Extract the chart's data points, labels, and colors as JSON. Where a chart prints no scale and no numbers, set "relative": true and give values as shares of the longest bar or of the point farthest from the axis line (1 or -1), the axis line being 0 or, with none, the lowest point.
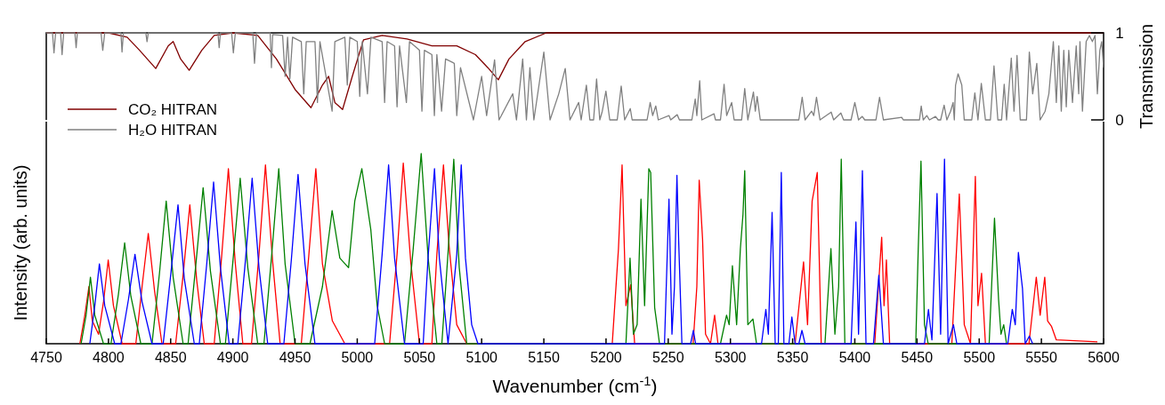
{
  "chart_data": [
    {
      "type": "line",
      "xlim": [
        4750,
        5600
      ],
      "ylim": [
        0,
        1
      ],
      "yticks": [
        0,
        1
      ],
      "ylabel": "Transmission",
      "tick_labels": "y",
      "legend": "bottom left",
      "series": [
        {
          "name": "CO₂ HITRAN",
          "color": "#800000",
          "x": [
            4750,
            4800,
            4815,
            4825,
            4838,
            4848,
            4852,
            4858,
            4864.9,
            4875,
            4885,
            4900,
            4920,
            4935,
            4950,
            4962.8,
            4972,
            4977,
            4982,
            4988.2,
            4996,
            5005,
            5020,
            5040,
            5060,
            5080,
            5095,
            5105,
            5113.4,
            5122,
            5135,
            5152,
            5600
          ],
          "values": [
            1,
            1,
            0.95,
            0.8,
            0.59,
            0.85,
            0.9,
            0.7,
            0.57,
            0.8,
            0.97,
            1,
            0.97,
            0.7,
            0.35,
            0.14,
            0.4,
            0.5,
            0.2,
            0.12,
            0.5,
            0.92,
            0.97,
            0.93,
            0.85,
            0.85,
            0.75,
            0.6,
            0.46,
            0.7,
            0.9,
            1,
            1
          ]
        },
        {
          "name": "H₂O HITRAN",
          "color": "#808080",
          "x": [
            4750,
            4755,
            4756.2,
            4757.5,
            4761.5,
            4762.7,
            4764,
            4773,
            4774,
            4775,
            4794,
            4795.4,
            4797,
            4810,
            4810.9,
            4812,
            4830,
            4831,
            4832,
            4888,
            4889,
            4890,
            4899,
            4900.4,
            4902,
            4916,
            4917.4,
            4919,
            4930,
            4931,
            4932,
            4940,
            4942,
            4944,
            4945.8,
            4948,
            4955,
            4957,
            4959,
            4966,
            4968,
            4970,
            4979.8,
            4982,
            4990,
            4992,
            4994,
            5000,
            5002,
            5004,
            5008.2,
            5011,
            5020,
            5022,
            5024,
            5030,
            5032,
            5034,
            5039.5,
            5042,
            5050,
            5052,
            5054,
            5060,
            5062,
            5064,
            5067.8,
            5071,
            5078,
            5080,
            5083,
            5093.4,
            5100,
            5104,
            5110.4,
            5114,
            5125,
            5128,
            5133,
            5136,
            5138.8,
            5142,
            5150,
            5155,
            5162,
            5167.2,
            5171,
            5178,
            5180,
            5184.2,
            5187,
            5190,
            5192.4,
            5195,
            5197,
            5199.9,
            5203,
            5209,
            5212.2,
            5215,
            5219.5,
            5221,
            5233,
            5235.5,
            5237.5,
            5240,
            5242,
            5250.6,
            5252,
            5257.2,
            5259,
            5269,
            5271.7,
            5273,
            5275.3,
            5277,
            5286.8,
            5288,
            5292,
            5294.9,
            5297,
            5301,
            5303,
            5309,
            5311.5,
            5314,
            5318.5,
            5320,
            5321.5,
            5324,
            5355,
            5357.7,
            5360,
            5365.3,
            5367,
            5369.2,
            5372,
            5381,
            5383,
            5388.8,
            5391,
            5397,
            5400,
            5403,
            5406,
            5408,
            5417,
            5419.9,
            5423,
            5437.7,
            5439,
            5452,
            5453.4,
            5455,
            5457.9,
            5460,
            5464.9,
            5467,
            5469,
            5471.8,
            5474,
            5477,
            5479,
            5480,
            5481,
            5483,
            5486,
            5488,
            5494,
            5496.5,
            5499,
            5501.7,
            5505,
            5509,
            5511.9,
            5515,
            5518,
            5520.1,
            5522,
            5525.8,
            5528,
            5530.4,
            5533,
            5538,
            5540.3,
            5543,
            5546.3,
            5549,
            5553,
            5556,
            5559.6,
            5562,
            5564,
            5566,
            5568,
            5570,
            5572,
            5575,
            5578,
            5580,
            5581,
            5583,
            5586,
            5588.6,
            5591,
            5593.1,
            5595,
            5597,
            5598.5,
            5600
          ],
          "values": [
            1,
            1,
            0.77,
            1,
            1,
            0.75,
            1,
            1,
            0.83,
            1,
            1,
            0.8,
            1,
            1,
            0.78,
            1,
            1,
            0.9,
            1,
            1,
            0.83,
            1,
            1,
            0.77,
            1,
            1,
            0.65,
            1,
            1,
            0.6,
            0.98,
            0.97,
            0.5,
            0.95,
            0.47,
            0.95,
            0.9,
            0.3,
            0.9,
            0.9,
            0.2,
            0.9,
            0.1,
            0.9,
            0.95,
            0.4,
            0.95,
            0.9,
            0.27,
            0.9,
            0.3,
            0.95,
            0.9,
            0.2,
            0.9,
            0.85,
            0.15,
            0.85,
            0.2,
            0.9,
            0.8,
            0.1,
            0.8,
            0.75,
            0.05,
            0.75,
            0.1,
            0.7,
            0.65,
            0.05,
            0.6,
            0,
            0.5,
            0.05,
            0.69,
            0,
            0.3,
            0,
            0.7,
            0,
            0.6,
            0,
            0.78,
            0,
            0.3,
            0.59,
            0,
            0.2,
            0,
            0.4,
            0,
            0,
            0.47,
            0,
            0.1,
            0.33,
            0,
            0,
            0.39,
            0,
            0.13,
            0,
            0,
            0.2,
            0.05,
            0.16,
            0,
            0.05,
            0,
            0.06,
            0,
            0,
            0.24,
            0.05,
            0.45,
            0,
            0.07,
            0,
            0,
            0.41,
            0.05,
            0.2,
            0,
            0,
            0.36,
            0,
            0.32,
            0.1,
            0.27,
            0,
            0,
            0.26,
            0,
            0.1,
            0.05,
            0.26,
            0,
            0.09,
            0,
            0.08,
            0,
            0,
            0.2,
            0,
            0.04,
            0,
            0,
            0.26,
            0,
            0.03,
            0,
            0,
            0.16,
            0,
            0.05,
            0,
            0.04,
            0,
            0,
            0.17,
            0,
            0.1,
            0.2,
            0,
            0.4,
            0.53,
            0.4,
            0,
            0,
            0.31,
            0,
            0.42,
            0,
            0,
            0.62,
            0,
            0,
            0.41,
            0,
            0.71,
            0.1,
            0.74,
            0,
            0,
            0.78,
            0.3,
            0.65,
            0,
            0.1,
            0.3,
            0.9,
            0.2,
            0.85,
            0.1,
            0.8,
            0.15,
            0.8,
            0.2,
            0.85,
            0.3,
            0.9,
            0.1,
            0.9,
            0.97,
            0.9,
            0.97,
            0.3,
            0.8,
            0.9,
            0.6
          ]
        }
      ]
    },
    {
      "type": "line",
      "relative": true,
      "xlim": [
        4750,
        5600
      ],
      "xticks": [
        4750,
        4800,
        4850,
        4900,
        4950,
        5000,
        5050,
        5100,
        5150,
        5200,
        5250,
        5300,
        5350,
        5400,
        5450,
        5500,
        5550,
        5600
      ],
      "xlabel": "Wavenumber (cm$^{-1}$)",
      "ylabel": "Intensity (arb. units)",
      "tick_labels": "x",
      "series": [
        {
          "color": "#ff0000",
          "x": [
            4777,
            4781,
            4784.3,
            4787,
            4792,
            4796,
            4799.8,
            4804,
            4811,
            4822,
            4827,
            4832,
            4837,
            4843,
            4854,
            4860,
            4865.4,
            4871,
            4877,
            4885,
            4891,
            4896.4,
            4902,
            4908,
            4915,
            4921,
            4926.2,
            4932,
            4938,
            4955,
            4961,
            4966.7,
            4972,
            4980,
            4990,
            5026,
            5032,
            5037,
            5043,
            5050,
            5060,
            5064,
            5069.3,
            5074,
            5080,
            5088,
            5205,
            5210,
            5212.9,
            5216,
            5219.8,
            5223,
            5270,
            5273,
            5274.9,
            5277.6,
            5280,
            5284,
            5287.3,
            5290,
            5352,
            5358.8,
            5362,
            5365.7,
            5369.8,
            5373,
            5416,
            5421.6,
            5423.5,
            5425.4,
            5428,
            5478,
            5484,
            5488,
            5493,
            5496.9,
            5499,
            5501.9,
            5505,
            5540,
            5545.9,
            5549,
            5552.7,
            5555,
            5558.2,
            5562,
            5595
          ],
          "values": [
            0,
            0.15,
            0.3,
            0.12,
            0.05,
            0.22,
            0.44,
            0.2,
            0,
            0,
            0.3,
            0.58,
            0.28,
            0,
            0,
            0.36,
            0.73,
            0.33,
            0,
            0,
            0.46,
            0.92,
            0.42,
            0,
            0,
            0.47,
            0.94,
            0.43,
            0,
            0,
            0.46,
            0.92,
            0.42,
            0.12,
            0,
            0,
            0.47,
            0.95,
            0.43,
            0,
            0,
            0.47,
            0.94,
            0.5,
            0.1,
            0,
            0,
            0.5,
            0.94,
            0.2,
            0.31,
            0,
            0,
            0.3,
            0.86,
            0.55,
            0.05,
            0,
            0.15,
            0,
            0,
            0.43,
            0.1,
            0.75,
            0.9,
            0,
            0,
            0.56,
            0.2,
            0.44,
            0,
            0,
            0.787,
            0.1,
            0,
            0.88,
            0.2,
            0.37,
            0,
            0,
            0.35,
            0.15,
            0.35,
            0.12,
            0.09,
            0.02,
            0.01
          ]
        },
        {
          "color": "#008000",
          "x": [
            4778,
            4782,
            4785.5,
            4789,
            4796,
            4802,
            4808,
            4813,
            4818,
            4826,
            4835,
            4841,
            4846.4,
            4852,
            4860,
            4864,
            4870,
            4876.1,
            4882,
            4890,
            4894,
            4900,
            4905.9,
            4912,
            4920,
            4925,
            4931,
            4936.9,
            4942,
            4950,
            4962,
            4972,
            4979.8,
            4986,
            4993,
            4998,
            5003.7,
            5010.9,
            5016,
            5022,
            5038,
            5045,
            5051.4,
            5057,
            5064,
            5068,
            5073,
            5077.6,
            5082,
            5088,
            5216,
            5219.3,
            5222,
            5225,
            5228.1,
            5231,
            5234.4,
            5235.9,
            5239.1,
            5243,
            5292,
            5296.9,
            5299,
            5301.6,
            5305,
            5308,
            5310.1,
            5311.5,
            5314,
            5318.1,
            5321,
            5376,
            5380.8,
            5384,
            5387,
            5389.1,
            5392,
            5449,
            5451,
            5453.2,
            5456,
            5459,
            5508,
            5512.3,
            5515.6,
            5517.5,
            5519.7,
            5522
          ],
          "values": [
            0,
            0.15,
            0.35,
            0.15,
            0,
            0,
            0.26,
            0.53,
            0.25,
            0,
            0,
            0.37,
            0.75,
            0.35,
            0,
            0,
            0.4,
            0.82,
            0.38,
            0,
            0,
            0.43,
            0.87,
            0.4,
            0,
            0,
            0.45,
            0.92,
            0.42,
            0,
            0,
            0.3,
            0.7,
            0.45,
            0.4,
            0.75,
            0.92,
            0.6,
            0.2,
            0,
            0,
            0.5,
            1,
            0.45,
            0,
            0,
            0.48,
            0.97,
            0.4,
            0,
            0,
            0.45,
            0.05,
            0.1,
            0.76,
            0.2,
            0.92,
            0.9,
            0.19,
            0,
            0,
            0.15,
            0.1,
            0.41,
            0.1,
            0.5,
            0.68,
            0.91,
            0.1,
            0.13,
            0,
            0,
            0.5,
            0.05,
            0.3,
            0.97,
            0,
            0,
            0.5,
            0.96,
            0.1,
            0,
            0,
            0.66,
            0.23,
            0.05,
            0.1,
            0
          ]
        },
        {
          "color": "#0000ff",
          "x": [
            4785,
            4789,
            4792.7,
            4797,
            4805,
            4810,
            4816,
            4821.3,
            4827,
            4835,
            4844,
            4850,
            4855.9,
            4861,
            4869,
            4873,
            4879,
            4884.5,
            4890,
            4897,
            4904,
            4910,
            4915.5,
            4921,
            4928,
            4941,
            4947,
            4952.4,
            4958,
            4966,
            5014,
            5020,
            5025.2,
            5030,
            5038,
            5053,
            5057,
            5062.1,
            5066,
            5073,
            5076,
            5080,
            5083.6,
            5087,
            5092,
            5097,
            5247,
            5250.6,
            5253,
            5255,
            5257,
            5258.4,
            5261,
            5268,
            5270.2,
            5272,
            5325,
            5328.5,
            5330.5,
            5333.5,
            5336,
            5338.5,
            5340.9,
            5343,
            5347,
            5349.4,
            5352,
            5355,
            5357.5,
            5360,
            5397,
            5400.9,
            5403,
            5406.1,
            5409,
            5415,
            5419.3,
            5423,
            5456,
            5459.2,
            5462,
            5466.1,
            5469,
            5472.1,
            5475,
            5479.3,
            5482,
            5523,
            5526.6,
            5529,
            5531.5,
            5534.8,
            5537,
            5540.3,
            5543
          ],
          "values": [
            0,
            0.2,
            0.42,
            0.2,
            0,
            0,
            0.23,
            0.47,
            0.22,
            0,
            0,
            0.36,
            0.73,
            0.34,
            0,
            0,
            0.42,
            0.85,
            0.4,
            0,
            0,
            0.43,
            0.87,
            0.4,
            0,
            0,
            0.44,
            0.89,
            0.42,
            0,
            0,
            0.47,
            0.94,
            0.45,
            0,
            0,
            0.46,
            0.92,
            0.45,
            0,
            0.2,
            0.47,
            0.94,
            0.45,
            0.1,
            0,
            0,
            0.76,
            0.05,
            0.3,
            0.885,
            0.54,
            0,
            0,
            0.07,
            0,
            0,
            0.18,
            0.05,
            0.69,
            0,
            0,
            0.9,
            0,
            0,
            0.14,
            0,
            0,
            0.07,
            0,
            0,
            0.64,
            0.05,
            0.91,
            0,
            0,
            0.36,
            0,
            0,
            0.18,
            0.02,
            0.79,
            0.05,
            0.97,
            0,
            0.1,
            0,
            0,
            0.18,
            0.1,
            0.48,
            0.29,
            0,
            0.04,
            0
          ]
        }
      ]
    }
  ]
}
